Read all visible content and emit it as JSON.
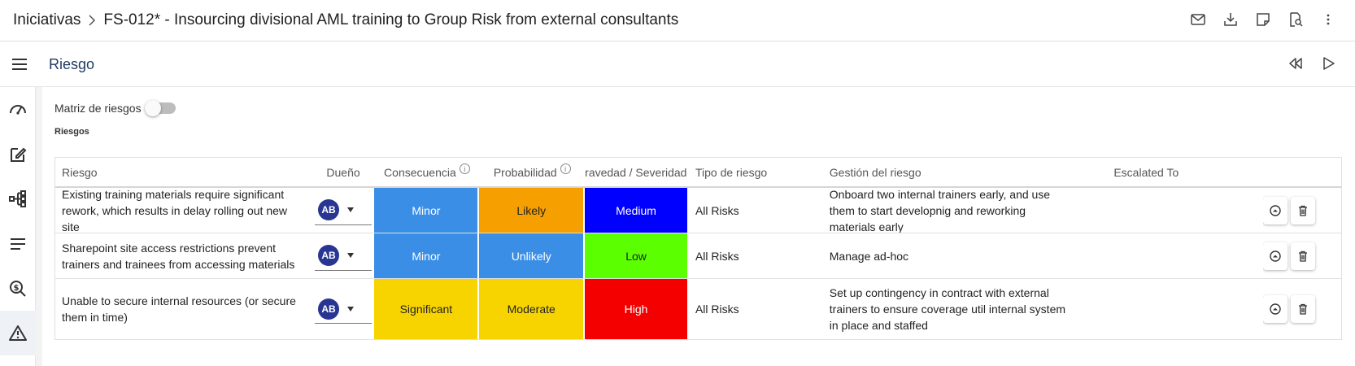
{
  "header": {
    "root": "Iniciativas",
    "title": "FS-012* - Insourcing divisional AML training to Group Risk from external consultants",
    "actions": [
      "mail-icon",
      "download-icon",
      "note-icon",
      "document-search-icon",
      "more-vert-icon"
    ]
  },
  "section": {
    "title": "Riesgo",
    "actions": [
      "rewind-icon",
      "play-icon"
    ]
  },
  "rail": [
    "dashboard-icon",
    "edit-icon",
    "workflow-icon",
    "list-icon",
    "money-search-icon",
    "warning-icon"
  ],
  "matrix_toggle": {
    "label": "Matriz de riesgos",
    "on": false
  },
  "risks_caption": "Riesgos",
  "columns": {
    "riesgo": "Riesgo",
    "dueno": "Dueño",
    "consecuencia": "Consecuencia",
    "probabilidad": "Probabilidad",
    "gravedad": "ravedad / Severidad",
    "tipo": "Tipo de riesgo",
    "gestion": "Gestión del riesgo",
    "escalated": "Escalated To"
  },
  "rows": [
    {
      "riesgo": "Existing training materials require significant rework, which results in delay rolling out new site",
      "owner": "AB",
      "consecuencia": "Minor",
      "probabilidad": "Likely",
      "gravedad": "Medium",
      "tipo": "All Risks",
      "gestion": "Onboard two internal trainers early, and use them to start developnig and reworking materials early",
      "escalated": ""
    },
    {
      "riesgo": "Sharepoint site access restrictions prevent trainers and trainees from accessing materials",
      "owner": "AB",
      "consecuencia": "Minor",
      "probabilidad": "Unlikely",
      "gravedad": "Low",
      "tipo": "All Risks",
      "gestion": "Manage ad-hoc",
      "escalated": ""
    },
    {
      "riesgo": "Unable to secure internal resources (or secure them in time)",
      "owner": "AB",
      "consecuencia": "Significant",
      "probabilidad": "Moderate",
      "gravedad": "High",
      "tipo": "All Risks",
      "gestion": "Set up contingency in contract with external trainers to ensure coverage util internal system in place and staffed",
      "escalated": ""
    }
  ],
  "colors": {
    "minor": "#3a8ee6",
    "significant": "#f7d400",
    "likely": "#f5a000",
    "unlikely": "#3a8ee6",
    "moderate": "#f7d400",
    "medium": "#0000ff",
    "low": "#5bff00",
    "high": "#f40000",
    "avatar": "#283593"
  }
}
